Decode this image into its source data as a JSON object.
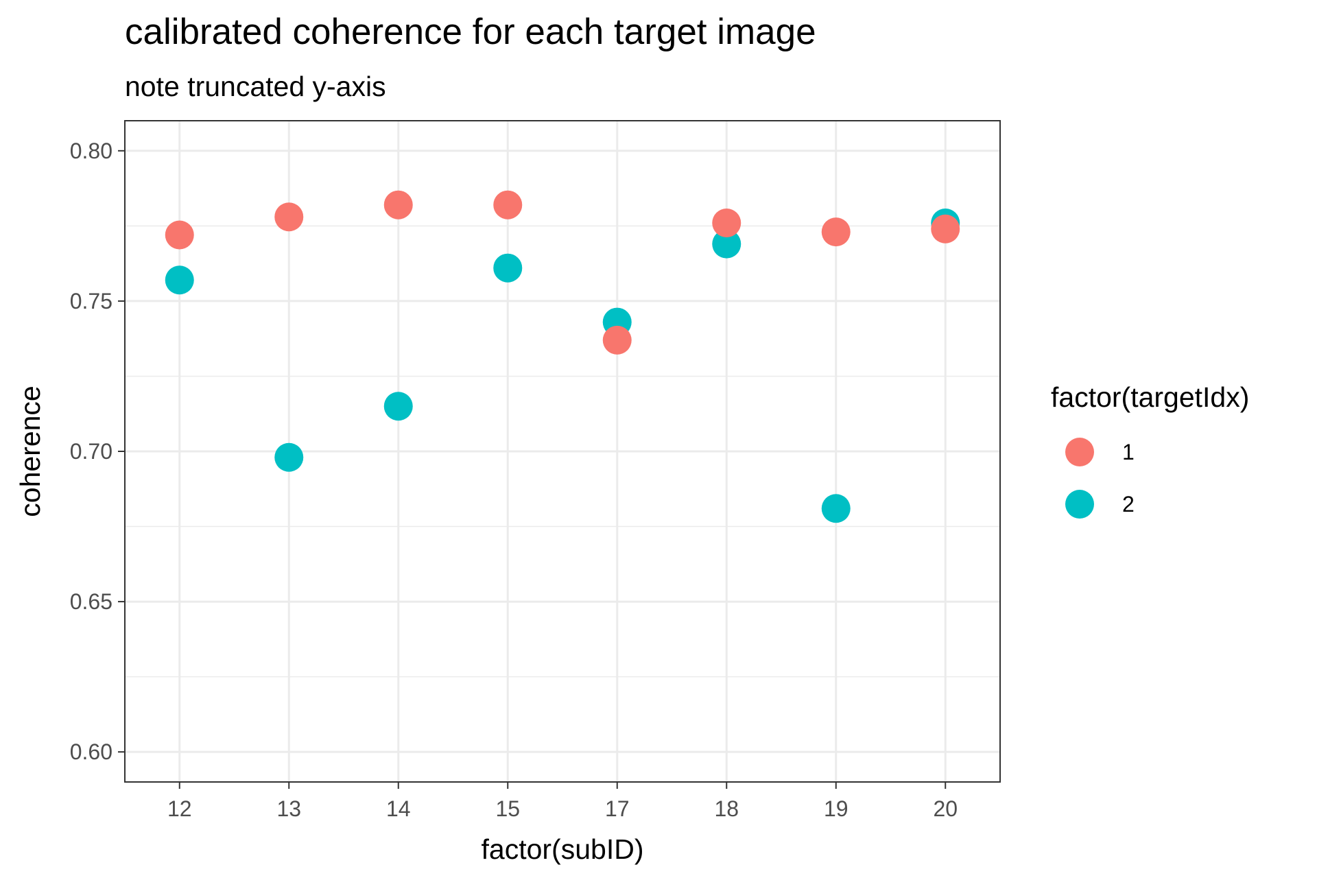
{
  "chart_data": {
    "type": "scatter",
    "title": "calibrated coherence for each target image",
    "subtitle": "note truncated y-axis",
    "xlabel": "factor(subID)",
    "ylabel": "coherence",
    "categories": [
      "12",
      "13",
      "14",
      "15",
      "17",
      "18",
      "19",
      "20"
    ],
    "ylim": [
      0.59,
      0.81
    ],
    "y_ticks": [
      "0.60",
      "0.65",
      "0.70",
      "0.75",
      "0.80"
    ],
    "y_tick_values": [
      0.6,
      0.65,
      0.7,
      0.75,
      0.8
    ],
    "grid": true,
    "legend": {
      "title": "factor(targetIdx)",
      "position": "right"
    },
    "series": [
      {
        "name": "1",
        "color": "#F8766D",
        "values": [
          0.772,
          0.778,
          0.782,
          0.782,
          0.737,
          0.776,
          0.773,
          0.774
        ]
      },
      {
        "name": "2",
        "color": "#00BFC4",
        "values": [
          0.757,
          0.698,
          0.715,
          0.761,
          0.743,
          0.769,
          0.681,
          0.776
        ]
      }
    ]
  }
}
